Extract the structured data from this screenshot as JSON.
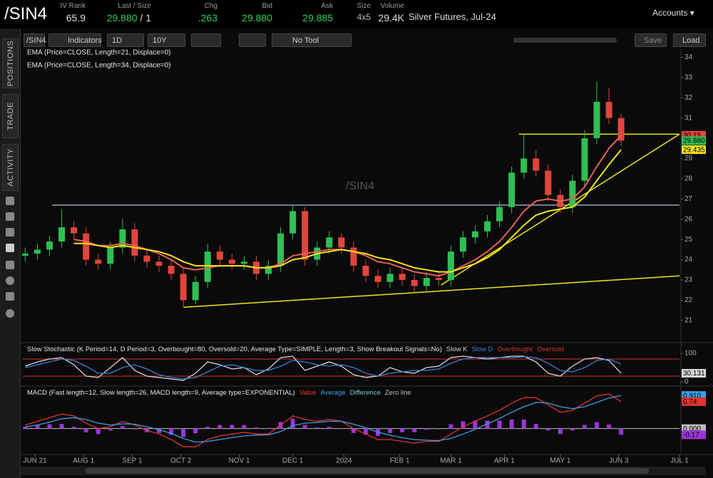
{
  "header": {
    "symbol": "/SIN4",
    "fields": [
      {
        "label": "IV Rank",
        "value": "65.9"
      },
      {
        "label": "Last / Size",
        "value": "29.880",
        "extra": "/ 1"
      },
      {
        "label": "Chg",
        "value": ".263"
      },
      {
        "label": "Bid",
        "value": "29.880"
      },
      {
        "label": "Ask",
        "value": "29.885"
      },
      {
        "label": "Size",
        "value": "4x5"
      },
      {
        "label": "Volume",
        "value": "29.4K"
      }
    ],
    "description": "Silver Futures, Jul-24",
    "accounts": "Accounts"
  },
  "sidebar": {
    "tabs": [
      "POSITIONS",
      "TRADE",
      "ACTIVITY"
    ]
  },
  "toolbar": {
    "symbol": "/SIN4",
    "indicators": "Indicators",
    "aggregation": "1D",
    "range": "10Y",
    "tool": "No Tool",
    "save": "Save",
    "load": "Load"
  },
  "chart_data": [
    {
      "type": "candlestick",
      "watermark": "/SIN4",
      "up_color": "#2fbf55",
      "down_color": "#e0453c",
      "x": [
        1,
        6,
        11,
        16,
        21,
        26,
        31,
        36,
        41,
        46,
        51,
        56,
        61,
        66,
        71,
        76,
        81,
        86,
        91,
        96,
        101,
        106,
        111,
        116,
        121,
        126,
        131,
        136,
        141,
        146,
        151,
        156,
        161,
        166,
        171,
        176,
        181,
        186,
        191,
        196,
        201,
        206,
        211,
        216,
        221,
        226,
        231,
        236,
        241,
        246
      ],
      "open": [
        24.2,
        24.3,
        24.5,
        24.9,
        25.6,
        25.3,
        24.0,
        23.8,
        24.6,
        25.5,
        24.2,
        23.9,
        23.7,
        23.3,
        22.0,
        22.9,
        24.4,
        24.0,
        23.8,
        23.9,
        23.3,
        23.7,
        25.3,
        26.4,
        24.0,
        24.6,
        25.1,
        24.6,
        23.7,
        23.2,
        22.9,
        23.3,
        23.0,
        22.7,
        23.1,
        23.0,
        24.4,
        25.1,
        25.4,
        25.9,
        26.6,
        28.3,
        29.0,
        28.4,
        27.2,
        26.6,
        27.9,
        30.0,
        31.8,
        31.0
      ],
      "high": [
        24.6,
        24.8,
        25.2,
        26.5,
        25.9,
        25.6,
        24.3,
        24.9,
        26.0,
        25.8,
        24.5,
        24.2,
        24.0,
        23.6,
        23.2,
        24.8,
        24.7,
        24.3,
        24.2,
        24.2,
        24.0,
        25.6,
        26.7,
        26.6,
        24.9,
        25.4,
        25.3,
        24.9,
        24.0,
        23.5,
        23.6,
        23.6,
        23.3,
        23.4,
        23.4,
        24.7,
        25.4,
        25.7,
        26.2,
        26.9,
        28.6,
        30.2,
        29.4,
        28.7,
        27.5,
        28.2,
        30.4,
        32.8,
        32.5,
        31.2
      ],
      "low": [
        23.9,
        24.0,
        24.2,
        24.6,
        25.0,
        23.7,
        23.5,
        23.5,
        24.3,
        23.9,
        23.6,
        23.4,
        23.0,
        21.7,
        21.8,
        22.6,
        23.7,
        23.5,
        23.5,
        23.0,
        23.0,
        23.4,
        25.0,
        23.7,
        23.7,
        24.3,
        24.3,
        23.4,
        22.9,
        22.6,
        22.6,
        22.7,
        22.4,
        22.4,
        22.7,
        22.7,
        24.1,
        24.8,
        25.1,
        25.6,
        26.3,
        28.0,
        28.1,
        26.9,
        26.3,
        26.3,
        27.6,
        29.7,
        30.7,
        29.6
      ],
      "close": [
        24.3,
        24.5,
        24.9,
        25.6,
        25.3,
        24.0,
        23.8,
        24.6,
        25.5,
        24.2,
        23.9,
        23.7,
        23.3,
        22.0,
        22.9,
        24.4,
        24.0,
        23.8,
        23.9,
        23.3,
        23.7,
        25.3,
        26.4,
        24.0,
        24.6,
        25.1,
        24.6,
        23.7,
        23.2,
        22.9,
        23.3,
        23.0,
        22.7,
        23.1,
        23.0,
        24.4,
        25.1,
        25.4,
        25.9,
        26.6,
        28.3,
        29.0,
        28.4,
        27.2,
        26.6,
        27.9,
        30.0,
        31.8,
        31.0,
        29.88
      ],
      "series": [
        {
          "name": "EMA (Price=CLOSE, Length=21, Displace=0)",
          "color": "#e8605a",
          "values": [
            null,
            null,
            null,
            null,
            25.0,
            24.9,
            24.7,
            24.7,
            24.8,
            24.7,
            24.5,
            24.3,
            24.0,
            23.6,
            23.5,
            23.6,
            23.7,
            23.7,
            23.7,
            23.6,
            23.6,
            23.8,
            24.2,
            24.3,
            24.4,
            24.5,
            24.5,
            24.4,
            24.2,
            23.9,
            23.8,
            23.6,
            23.4,
            23.3,
            23.2,
            23.4,
            23.7,
            24.0,
            24.4,
            24.9,
            25.6,
            26.4,
            26.9,
            27.0,
            26.9,
            27.0,
            27.6,
            28.6,
            29.5,
            30.15
          ]
        },
        {
          "name": "EMA (Price=CLOSE, Length=34, Displace=0)",
          "color": "#f2e31c",
          "values": [
            null,
            null,
            null,
            null,
            24.8,
            24.8,
            24.7,
            24.6,
            24.7,
            24.6,
            24.5,
            24.4,
            24.2,
            23.9,
            23.7,
            23.7,
            23.7,
            23.7,
            23.7,
            23.6,
            23.6,
            23.7,
            24.0,
            24.1,
            24.3,
            24.4,
            24.5,
            24.4,
            24.3,
            24.1,
            24.0,
            23.8,
            23.6,
            23.5,
            23.4,
            23.4,
            23.6,
            23.8,
            24.1,
            24.5,
            25.1,
            25.7,
            26.2,
            26.4,
            26.5,
            26.6,
            27.1,
            27.9,
            28.7,
            29.435
          ]
        }
      ],
      "levels": [
        {
          "value": 26.7,
          "x_start": 12,
          "color": "#8fa3c0"
        },
        {
          "value": 30.2,
          "x_start": 204,
          "color": "#f2e31c"
        }
      ],
      "trendlines": [
        {
          "x": [
            66,
            270
          ],
          "y": [
            21.65,
            23.2
          ],
          "color": "#f2e31c"
        },
        {
          "x": [
            172,
            270
          ],
          "y": [
            22.75,
            30.2
          ],
          "color": "#f2e31c"
        }
      ],
      "tags": [
        {
          "value": 30.15,
          "label": "30.15",
          "color": "#e0453c"
        },
        {
          "value": 29.88,
          "label": "29.880",
          "color": "#2fbf55"
        },
        {
          "value": 29.435,
          "label": "29.435",
          "color": "#f2e31c"
        }
      ],
      "xlim": [
        0,
        270
      ],
      "xticks": [
        {
          "value": 5,
          "label": "JUN 21"
        },
        {
          "value": 25,
          "label": "AUG 1"
        },
        {
          "value": 45,
          "label": "SEP 1"
        },
        {
          "value": 65,
          "label": "OCT 2"
        },
        {
          "value": 89,
          "label": "NOV 1"
        },
        {
          "value": 111,
          "label": "DEC 1"
        },
        {
          "value": 132,
          "label": "2024"
        },
        {
          "value": 155,
          "label": "FEB 1"
        },
        {
          "value": 176,
          "label": "MAR 1"
        },
        {
          "value": 198,
          "label": "APR 1"
        },
        {
          "value": 221,
          "label": "MAY 1"
        },
        {
          "value": 245,
          "label": "JUN 3"
        },
        {
          "value": 270,
          "label": "JUL 1"
        }
      ],
      "ylim": [
        20.5,
        35
      ],
      "yticks": [
        21,
        22,
        23,
        24,
        25,
        26,
        27,
        28,
        29,
        30,
        31,
        32,
        33,
        34
      ]
    },
    {
      "type": "line",
      "title": "Slow Stochastic (K Period=14, D Period=3, Overbought=80, Oversold=20, Average Type=SIMPLE, Length=3, Show Breakout Signals=No)",
      "series": [
        {
          "name": "Slow K",
          "color": "#d8d8d8",
          "values": [
            55,
            70,
            80,
            85,
            60,
            20,
            15,
            50,
            85,
            40,
            20,
            15,
            10,
            5,
            30,
            70,
            60,
            45,
            50,
            25,
            45,
            85,
            90,
            40,
            55,
            70,
            55,
            25,
            15,
            20,
            50,
            35,
            30,
            50,
            55,
            85,
            90,
            85,
            80,
            85,
            90,
            90,
            70,
            30,
            20,
            55,
            80,
            85,
            75,
            30.131
          ]
        },
        {
          "name": "Slow D",
          "color": "#3b7fd6",
          "values": [
            50,
            60,
            70,
            80,
            75,
            55,
            30,
            30,
            50,
            60,
            45,
            25,
            15,
            10,
            15,
            35,
            55,
            60,
            50,
            40,
            40,
            55,
            75,
            70,
            60,
            55,
            60,
            50,
            30,
            20,
            30,
            35,
            40,
            40,
            45,
            65,
            80,
            85,
            85,
            85,
            85,
            88,
            85,
            65,
            40,
            35,
            50,
            75,
            80,
            62
          ]
        }
      ],
      "levels": [
        {
          "name": "Overbought",
          "value": 80,
          "color": "#d0342c"
        },
        {
          "name": "Oversold",
          "value": 20,
          "color": "#d0342c"
        }
      ],
      "tags": [
        {
          "value": 30.131,
          "label": "30.131",
          "color": "#d8d8d8"
        }
      ],
      "ylim": [
        0,
        100
      ],
      "yticks": [
        0,
        100
      ]
    },
    {
      "type": "line",
      "title": "MACD (Fast length=12, Slow length=26, MACD length=9, Average type=EXPONENTIAL)",
      "series": [
        {
          "name": "Value",
          "color": "#e0352f",
          "values": [
            0.1,
            0.2,
            0.3,
            0.4,
            0.35,
            0.15,
            0.0,
            0.05,
            0.2,
            0.1,
            -0.05,
            -0.15,
            -0.3,
            -0.5,
            -0.5,
            -0.3,
            -0.2,
            -0.15,
            -0.1,
            -0.15,
            -0.15,
            0.1,
            0.35,
            0.25,
            0.2,
            0.25,
            0.2,
            0.0,
            -0.15,
            -0.3,
            -0.3,
            -0.35,
            -0.4,
            -0.35,
            -0.35,
            -0.15,
            0.05,
            0.2,
            0.35,
            0.5,
            0.7,
            0.85,
            0.85,
            0.65,
            0.45,
            0.5,
            0.7,
            0.9,
            0.95,
            0.74
          ]
        },
        {
          "name": "Average",
          "color": "#3aa0e8",
          "values": [
            0.05,
            0.1,
            0.18,
            0.27,
            0.3,
            0.25,
            0.15,
            0.1,
            0.13,
            0.12,
            0.05,
            -0.03,
            -0.13,
            -0.27,
            -0.37,
            -0.35,
            -0.3,
            -0.25,
            -0.2,
            -0.18,
            -0.17,
            -0.08,
            0.08,
            0.15,
            0.17,
            0.2,
            0.2,
            0.12,
            0.02,
            -0.1,
            -0.18,
            -0.25,
            -0.3,
            -0.32,
            -0.33,
            -0.27,
            -0.15,
            -0.02,
            0.13,
            0.28,
            0.45,
            0.6,
            0.72,
            0.7,
            0.6,
            0.55,
            0.6,
            0.72,
            0.84,
            0.91
          ]
        }
      ],
      "bars": {
        "name": "Difference",
        "color": "#9b35d8",
        "values": [
          0.05,
          0.1,
          0.12,
          0.13,
          0.05,
          -0.1,
          -0.15,
          -0.05,
          0.07,
          -0.02,
          -0.1,
          -0.12,
          -0.17,
          -0.23,
          -0.13,
          0.05,
          0.1,
          0.1,
          0.1,
          0.03,
          0.02,
          0.18,
          0.27,
          0.1,
          0.03,
          0.05,
          0,
          -0.12,
          -0.17,
          -0.2,
          -0.12,
          -0.1,
          -0.1,
          -0.03,
          -0.02,
          0.12,
          0.2,
          0.22,
          0.22,
          0.22,
          0.25,
          0.25,
          0.13,
          -0.05,
          -0.15,
          -0.05,
          0.1,
          0.18,
          0.11,
          -0.17
        ]
      },
      "levels": [
        {
          "name": "Zero line",
          "value": 0,
          "color": "#bdbdbd"
        }
      ],
      "tags": [
        {
          "value": 0.91,
          "label": "0.910",
          "color": "#3aa0e8"
        },
        {
          "value": 0.74,
          "label": "0.74",
          "color": "#e0352f"
        },
        {
          "value": 0,
          "label": "0.000",
          "color": "#bdbdbd"
        },
        {
          "value": -0.17,
          "label": "-0.17",
          "color": "#9b35d8"
        }
      ],
      "ylim": [
        -0.75,
        1.05
      ]
    }
  ]
}
